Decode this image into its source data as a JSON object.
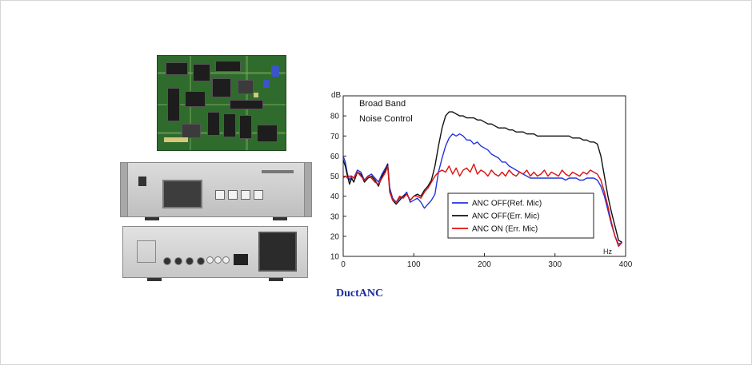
{
  "caption": "DuctANC",
  "annotation_lines": [
    "Broad Band",
    "Noise Control"
  ],
  "chart_data": {
    "type": "line",
    "xlabel": "Hz",
    "ylabel": "dB",
    "xlim": [
      0,
      400
    ],
    "ylim": [
      10,
      90
    ],
    "xticks": [
      0,
      100,
      200,
      300,
      400
    ],
    "yticks": [
      10,
      20,
      30,
      40,
      50,
      60,
      70,
      80
    ],
    "grid": false,
    "legend_position": "bottom-right",
    "series": [
      {
        "name": "ANC OFF(Ref. Mic)",
        "color": "#2233dd",
        "x": [
          0,
          3,
          6,
          9,
          12,
          15,
          20,
          25,
          30,
          35,
          40,
          45,
          50,
          55,
          60,
          63,
          66,
          70,
          75,
          80,
          85,
          90,
          95,
          100,
          105,
          110,
          115,
          120,
          125,
          130,
          135,
          140,
          145,
          150,
          155,
          160,
          165,
          170,
          175,
          180,
          185,
          190,
          195,
          200,
          205,
          210,
          215,
          220,
          225,
          230,
          235,
          240,
          245,
          250,
          255,
          260,
          265,
          270,
          275,
          280,
          285,
          290,
          295,
          300,
          305,
          310,
          315,
          320,
          325,
          330,
          335,
          340,
          345,
          350,
          355,
          360,
          365,
          370,
          375,
          380,
          385,
          390,
          395
        ],
        "y": [
          60,
          57,
          51,
          48,
          50,
          49,
          53,
          52,
          48,
          50,
          51,
          49,
          47,
          51,
          54,
          56,
          44,
          39,
          37,
          39,
          40,
          42,
          37,
          38,
          39,
          37,
          34,
          36,
          38,
          41,
          52,
          59,
          65,
          69,
          71,
          70,
          71,
          70,
          68,
          68,
          66,
          67,
          65,
          64,
          63,
          61,
          60,
          59,
          57,
          57,
          55,
          54,
          53,
          52,
          51,
          50,
          49,
          49,
          49,
          49,
          49,
          49,
          49,
          49,
          49,
          49,
          48,
          49,
          49,
          49,
          48,
          48,
          49,
          49,
          49,
          48,
          45,
          40,
          33,
          26,
          20,
          16,
          17
        ]
      },
      {
        "name": "ANC OFF(Err. Mic)",
        "color": "#111111",
        "x": [
          0,
          3,
          6,
          9,
          12,
          15,
          20,
          25,
          30,
          35,
          40,
          45,
          50,
          55,
          60,
          63,
          66,
          70,
          75,
          80,
          85,
          90,
          95,
          100,
          105,
          110,
          115,
          120,
          125,
          130,
          135,
          140,
          145,
          150,
          155,
          160,
          165,
          170,
          175,
          180,
          185,
          190,
          195,
          200,
          205,
          210,
          215,
          220,
          225,
          230,
          235,
          240,
          245,
          250,
          255,
          260,
          265,
          270,
          275,
          280,
          285,
          290,
          295,
          300,
          305,
          310,
          315,
          320,
          325,
          330,
          335,
          340,
          345,
          350,
          355,
          360,
          365,
          370,
          375,
          380,
          385,
          390,
          395
        ],
        "y": [
          58,
          55,
          50,
          46,
          49,
          47,
          52,
          51,
          47,
          49,
          50,
          48,
          45,
          50,
          53,
          56,
          42,
          38,
          36,
          38,
          40,
          41,
          38,
          40,
          41,
          40,
          43,
          45,
          48,
          55,
          65,
          74,
          80,
          82,
          82,
          81,
          80,
          80,
          79,
          79,
          79,
          78,
          78,
          77,
          76,
          76,
          75,
          74,
          74,
          74,
          73,
          73,
          72,
          72,
          72,
          71,
          71,
          71,
          70,
          70,
          70,
          70,
          70,
          70,
          70,
          70,
          70,
          70,
          69,
          69,
          69,
          68,
          68,
          67,
          67,
          66,
          60,
          50,
          40,
          32,
          25,
          18,
          17
        ]
      },
      {
        "name": "ANC ON (Err. Mic)",
        "color": "#dd1111",
        "x": [
          0,
          3,
          6,
          9,
          12,
          15,
          20,
          25,
          30,
          35,
          40,
          45,
          50,
          55,
          60,
          63,
          66,
          70,
          75,
          80,
          85,
          90,
          95,
          100,
          105,
          110,
          115,
          120,
          125,
          130,
          135,
          140,
          145,
          150,
          155,
          160,
          165,
          170,
          175,
          180,
          185,
          190,
          195,
          200,
          205,
          210,
          215,
          220,
          225,
          230,
          235,
          240,
          245,
          250,
          255,
          260,
          265,
          270,
          275,
          280,
          285,
          290,
          295,
          300,
          305,
          310,
          315,
          320,
          325,
          330,
          335,
          340,
          345,
          350,
          355,
          360,
          365,
          370,
          375,
          380,
          385,
          390,
          395
        ],
        "y": [
          49,
          50,
          49,
          50,
          50,
          49,
          52,
          50,
          48,
          50,
          49,
          47,
          46,
          49,
          52,
          55,
          42,
          38,
          37,
          40,
          39,
          41,
          38,
          40,
          40,
          39,
          42,
          44,
          47,
          50,
          52,
          53,
          52,
          55,
          51,
          54,
          50,
          53,
          54,
          52,
          56,
          51,
          53,
          52,
          50,
          53,
          51,
          50,
          52,
          50,
          53,
          51,
          50,
          52,
          51,
          53,
          50,
          52,
          50,
          51,
          53,
          50,
          52,
          51,
          50,
          53,
          51,
          50,
          52,
          51,
          50,
          52,
          51,
          53,
          52,
          51,
          48,
          42,
          35,
          27,
          20,
          15,
          17
        ]
      }
    ]
  }
}
